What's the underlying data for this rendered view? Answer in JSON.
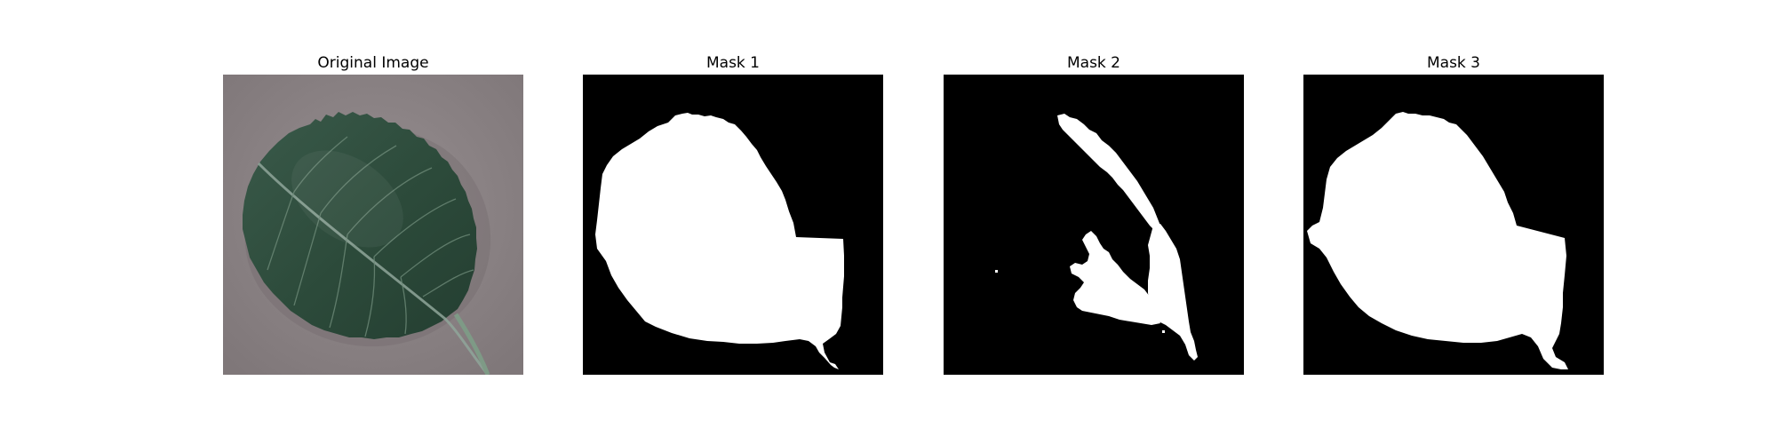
{
  "panels": [
    {
      "title": "Original Image"
    },
    {
      "title": "Mask 1"
    },
    {
      "title": "Mask 2"
    },
    {
      "title": "Mask 3"
    }
  ],
  "colors": {
    "background": "#ffffff",
    "mask_foreground": "#ffffff",
    "mask_background": "#000000",
    "leaf_green": "#2f4a3c",
    "leaf_vein": "#8fa69a",
    "surface_gray": "#8c8486"
  }
}
